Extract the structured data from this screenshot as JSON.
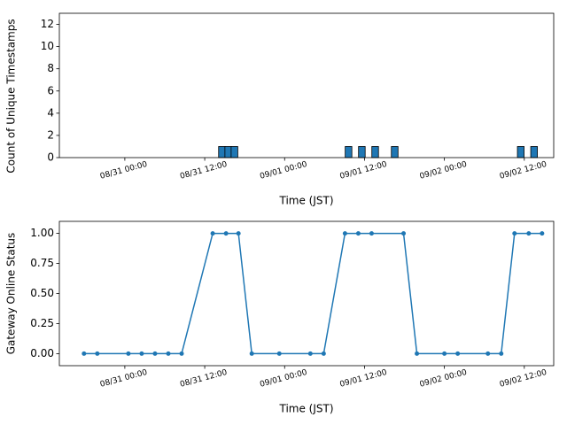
{
  "chart_data": [
    {
      "type": "bar",
      "ylabel": "Count of Unique Timestamps",
      "xlabel": "Time (JST)",
      "color": "#1f77b4",
      "x": [
        "08/31 14:35",
        "08/31 15:32",
        "08/31 16:28",
        "09/01 09:36",
        "09/01 11:36",
        "09/01 13:36",
        "09/01 16:32",
        "09/02 11:28",
        "09/02 13:28"
      ],
      "values": [
        1,
        1,
        1,
        1,
        1,
        1,
        1,
        1,
        1
      ],
      "xlim": [
        "08/30 14:10",
        "09/02 16:25"
      ],
      "xticks": [
        "08/31 00:00",
        "08/31 12:00",
        "09/01 00:00",
        "09/01 12:00",
        "09/02 00:00",
        "09/02 12:00"
      ],
      "ylim": [
        0,
        13
      ],
      "yticks": [
        0,
        2,
        4,
        6,
        8,
        10,
        12
      ]
    },
    {
      "type": "line",
      "ylabel": "Gateway Online Status",
      "xlabel": "Time (JST)",
      "color": "#1f77b4",
      "x": [
        "08/30 17:52",
        "08/30 19:52",
        "08/31 00:32",
        "08/31 02:32",
        "08/31 04:32",
        "08/31 06:32",
        "08/31 08:32",
        "08/31 13:12",
        "08/31 15:12",
        "08/31 17:04",
        "08/31 19:04",
        "08/31 23:12",
        "09/01 03:52",
        "09/01 05:52",
        "09/01 09:04",
        "09/01 11:04",
        "09/01 13:04",
        "09/01 17:52",
        "09/01 19:52",
        "09/02 00:00",
        "09/02 02:00",
        "09/02 06:32",
        "09/02 08:32",
        "09/02 10:32",
        "09/02 12:40",
        "09/02 14:40"
      ],
      "values": [
        0,
        0,
        0,
        0,
        0,
        0,
        0,
        1,
        1,
        1,
        0,
        0,
        0,
        0,
        1,
        1,
        1,
        1,
        0,
        0,
        0,
        0,
        0,
        1,
        1,
        1
      ],
      "xlim": [
        "08/30 14:10",
        "09/02 16:25"
      ],
      "xticks": [
        "08/31 00:00",
        "08/31 12:00",
        "09/01 00:00",
        "09/01 12:00",
        "09/02 00:00",
        "09/02 12:00"
      ],
      "ylim": [
        -0.1,
        1.1
      ],
      "yticks": [
        {
          "value": 0,
          "label": "0.00"
        },
        {
          "value": 0.25,
          "label": "0.25"
        },
        {
          "value": 0.5,
          "label": "0.50"
        },
        {
          "value": 0.75,
          "label": "0.75"
        },
        {
          "value": 1,
          "label": "1.00"
        }
      ]
    }
  ]
}
